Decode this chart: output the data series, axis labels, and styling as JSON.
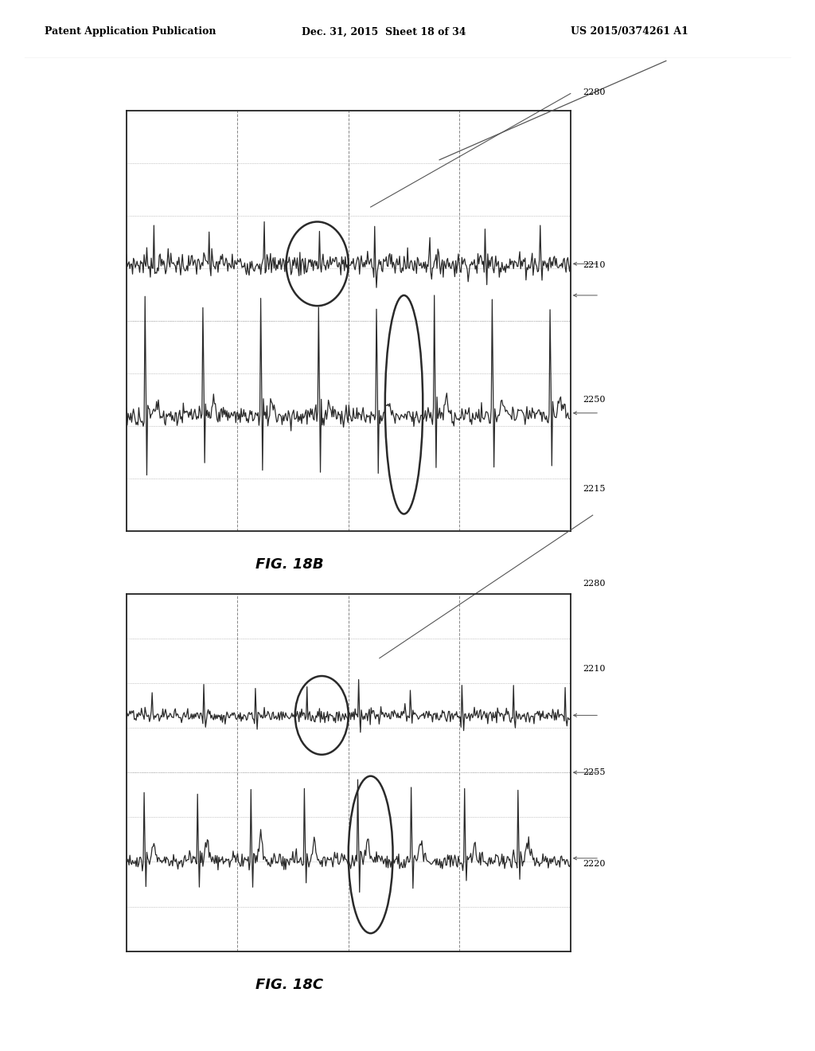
{
  "header_left": "Patent Application Publication",
  "header_mid": "Dec. 31, 2015  Sheet 18 of 34",
  "header_right": "US 2015/0374261 A1",
  "fig18b_label": "FIG. 18B",
  "fig18c_label": "FIG. 18C",
  "labels_18b": [
    "2280",
    "2210",
    "2250",
    "2215"
  ],
  "labels_18c": [
    "2280",
    "2210",
    "2255",
    "2220"
  ],
  "bg_color": "#ffffff",
  "line_color": "#2a2a2a",
  "grid_dot_color": "#999999",
  "grid_dash_color": "#888888",
  "box_color": "#222222",
  "label_line_color": "#555555"
}
